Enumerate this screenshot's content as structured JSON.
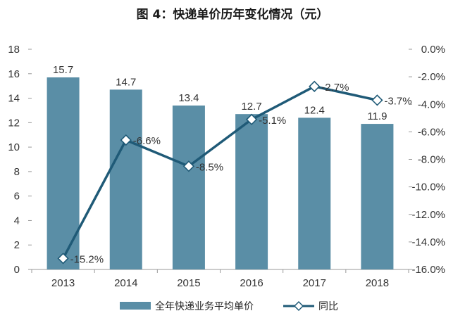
{
  "chart_data": {
    "type": "bar+line",
    "title": "图 4：快递单价历年变化情况（元）",
    "categories": [
      "2013",
      "2014",
      "2015",
      "2016",
      "2017",
      "2018"
    ],
    "series": [
      {
        "name": "全年快递业务平均单价",
        "type": "bar",
        "axis": "left",
        "values": [
          15.7,
          14.7,
          13.4,
          12.7,
          12.4,
          11.9
        ],
        "labels": [
          "15.7",
          "14.7",
          "13.4",
          "12.7",
          "12.4",
          "11.9"
        ],
        "color": "#5a8ea6"
      },
      {
        "name": "同比",
        "type": "line",
        "axis": "right",
        "values": [
          -15.2,
          -6.6,
          -8.5,
          -5.1,
          -2.7,
          -3.7
        ],
        "labels": [
          "-15.2%",
          "-6.6%",
          "-8.5%",
          "-5.1%",
          "-2.7%",
          "-3.7%"
        ],
        "color": "#1f5a77"
      }
    ],
    "y_left": {
      "lim": [
        0,
        18
      ],
      "ticks": [
        0,
        2,
        4,
        6,
        8,
        10,
        12,
        14,
        16,
        18
      ],
      "tick_labels": [
        "0",
        "2",
        "4",
        "6",
        "8",
        "10",
        "12",
        "14",
        "16",
        "18"
      ]
    },
    "y_right": {
      "lim": [
        -16,
        0
      ],
      "ticks": [
        0,
        -2,
        -4,
        -6,
        -8,
        -10,
        -12,
        -14,
        -16
      ],
      "tick_labels": [
        "0.0%",
        "-2.0%",
        "-4.0%",
        "-6.0%",
        "-8.0%",
        "-10.0%",
        "-12.0%",
        "-14.0%",
        "-16.0%"
      ]
    },
    "legend_position": "bottom",
    "grid": false
  }
}
